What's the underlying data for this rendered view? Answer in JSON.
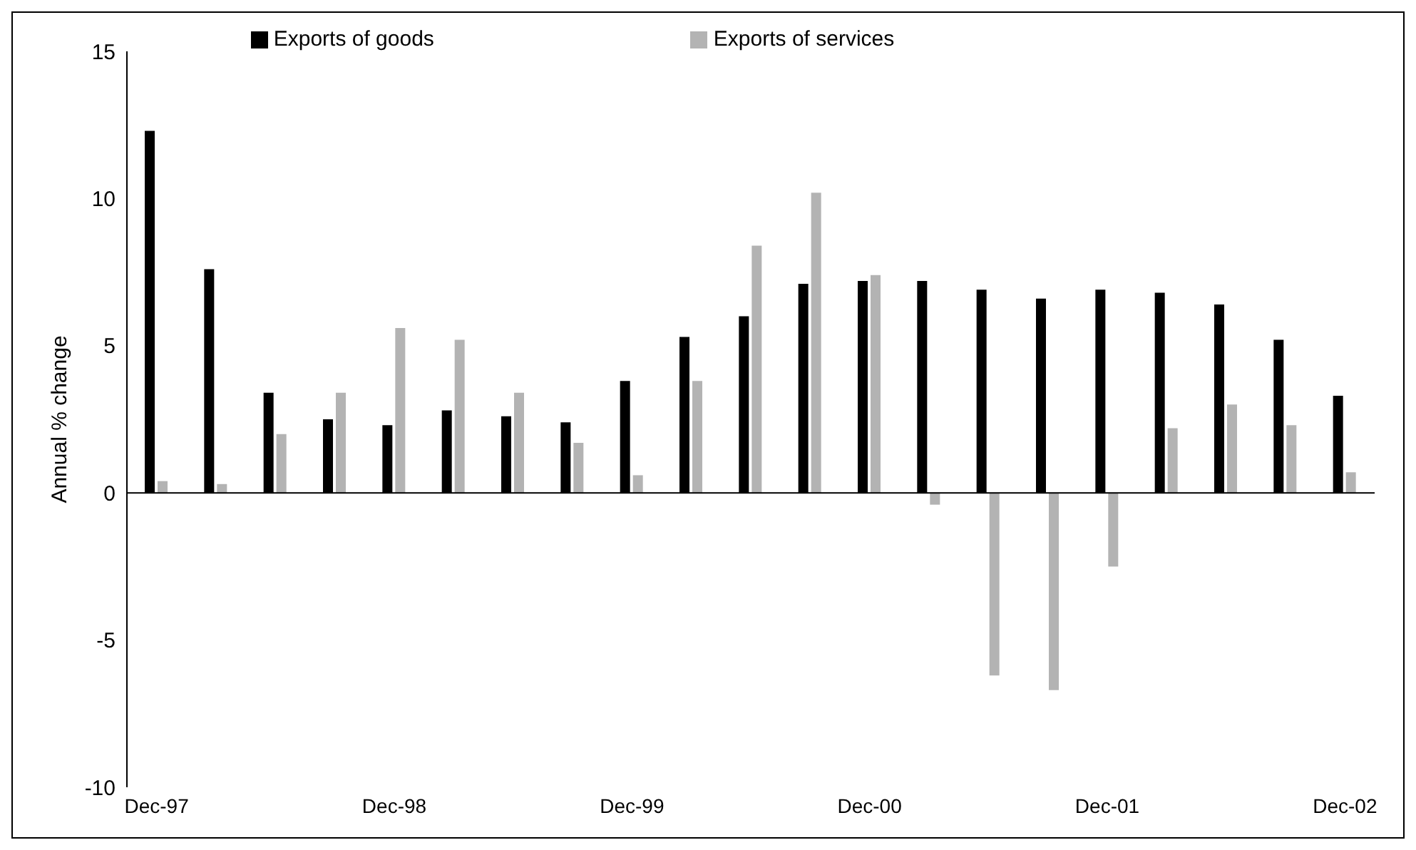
{
  "chart_data": {
    "type": "bar",
    "ylabel": "Annual % change",
    "categories": [
      "Dec-97",
      null,
      null,
      null,
      "Dec-98",
      null,
      null,
      null,
      "Dec-99",
      null,
      null,
      null,
      "Dec-00",
      null,
      null,
      null,
      "Dec-01",
      null,
      null,
      null,
      "Dec-02"
    ],
    "series": [
      {
        "name": "Exports of goods",
        "color": "#000000",
        "values": [
          12.3,
          7.6,
          3.4,
          2.5,
          2.3,
          2.8,
          2.6,
          2.4,
          3.8,
          5.3,
          6.0,
          7.1,
          7.2,
          7.2,
          6.9,
          6.6,
          6.9,
          6.8,
          6.4,
          5.2,
          3.3
        ]
      },
      {
        "name": "Exports of services",
        "color": "#b3b3b3",
        "values": [
          0.4,
          0.3,
          2.0,
          3.4,
          5.6,
          5.2,
          3.4,
          1.7,
          0.6,
          3.8,
          8.4,
          10.2,
          7.4,
          -0.4,
          -6.2,
          -6.7,
          -2.5,
          2.2,
          3.0,
          2.3,
          0.7
        ]
      }
    ],
    "ylim": [
      -10,
      15
    ],
    "yticks": [
      -10,
      -5,
      0,
      5,
      10,
      15
    ],
    "legend": "top"
  }
}
